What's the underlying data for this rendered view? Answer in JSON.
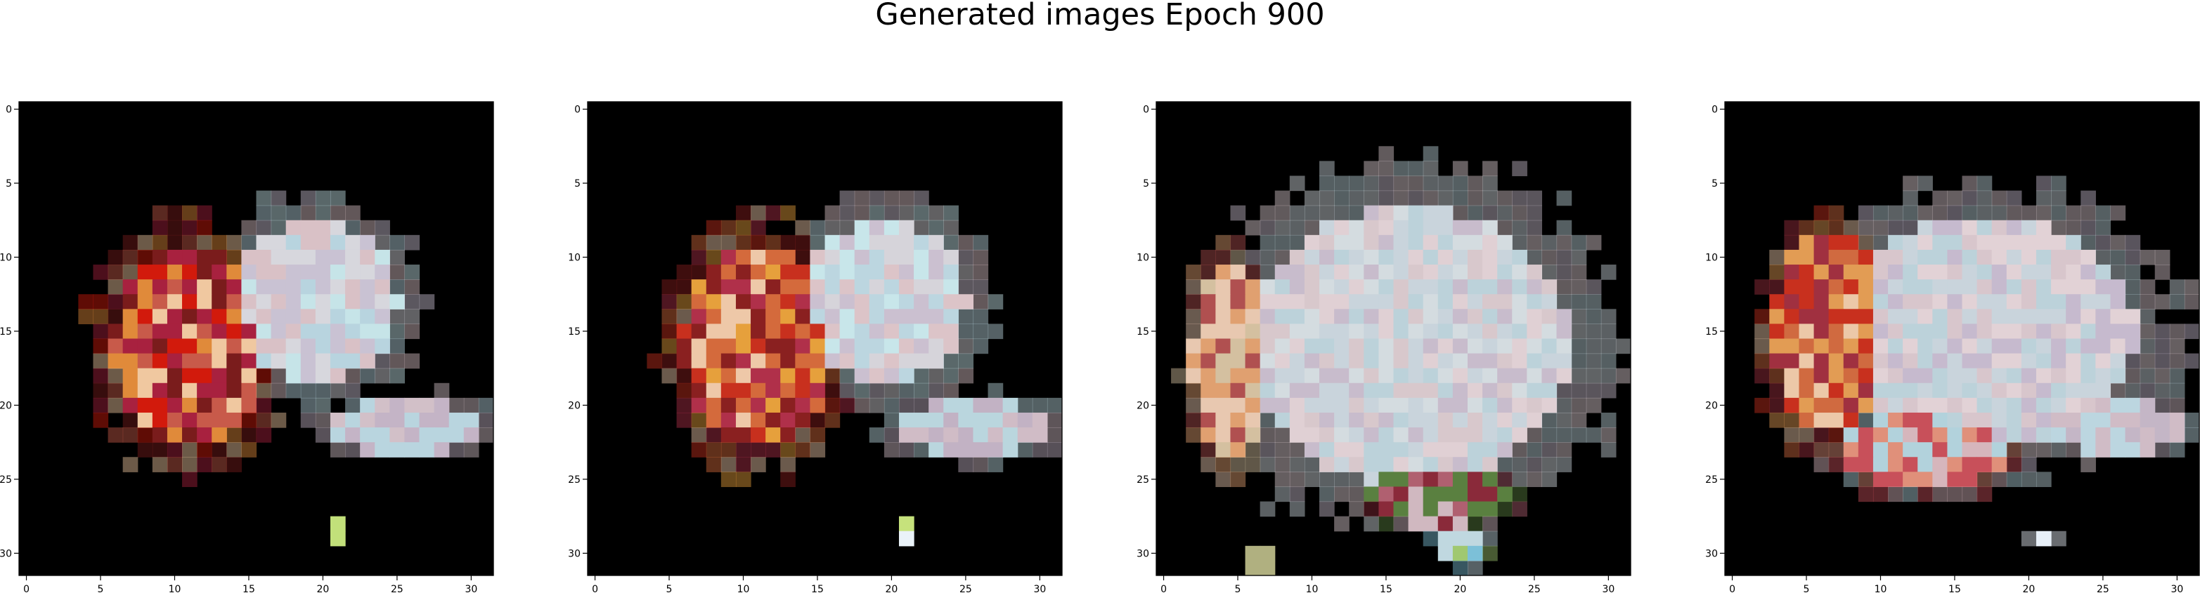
{
  "figure": {
    "title": "Generated images Epoch 900"
  },
  "chart_data": [
    {
      "type": "heatmap",
      "title": "",
      "grid_size": 32,
      "xticks": [
        "0",
        "5",
        "10",
        "15",
        "20",
        "25",
        "30"
      ],
      "yticks": [
        "0",
        "5",
        "10",
        "15",
        "20",
        "25",
        "30"
      ],
      "xlim": [
        -0.5,
        31.5
      ],
      "ylim": [
        31.5,
        -0.5
      ],
      "grid": false,
      "background": "#000000",
      "blobs": [
        {
          "cx": 11,
          "cy": 16,
          "rx": 6,
          "ry": 8,
          "palette": [
            "#d21a0c",
            "#e08a3a",
            "#a8213f",
            "#f0c8a0",
            "#c85a4a",
            "#7a1c1c"
          ]
        },
        {
          "cx": 19.5,
          "cy": 13,
          "rx": 6.5,
          "ry": 6.5,
          "palette": [
            "#d7d7dd",
            "#b8d4df",
            "#c9c2d3",
            "#d9c1c6",
            "#c6e4e8"
          ]
        },
        {
          "cx": 25.5,
          "cy": 21.5,
          "rx": 6,
          "ry": 2.2,
          "palette": [
            "#d2c0c8",
            "#c4b4c6",
            "#b9d5df"
          ]
        },
        {
          "cx": 21,
          "cy": 28.5,
          "rx": 0.8,
          "ry": 0.8,
          "palette": [
            "#9cc2e8",
            "#c2e07a",
            "#e8f0f8"
          ]
        }
      ]
    },
    {
      "type": "heatmap",
      "title": "",
      "grid_size": 32,
      "xticks": [
        "0",
        "5",
        "10",
        "15",
        "20",
        "25",
        "30"
      ],
      "yticks": [
        "0",
        "5",
        "10",
        "15",
        "20",
        "25",
        "30"
      ],
      "xlim": [
        -0.5,
        31.5
      ],
      "ylim": [
        31.5,
        -0.5
      ],
      "grid": false,
      "background": "#000000",
      "blobs": [
        {
          "cx": 11,
          "cy": 16,
          "rx": 6,
          "ry": 8,
          "palette": [
            "#c8301e",
            "#e6a03c",
            "#b0304a",
            "#eec8a8",
            "#d46a3c",
            "#8a2020"
          ]
        },
        {
          "cx": 19.5,
          "cy": 13,
          "rx": 6.5,
          "ry": 6.5,
          "palette": [
            "#d6d4da",
            "#bcd6e0",
            "#cbc0d0",
            "#dcc4c8",
            "#c8e6ea"
          ]
        },
        {
          "cx": 25.5,
          "cy": 21.5,
          "rx": 6,
          "ry": 2.2,
          "palette": [
            "#d0bcc6",
            "#c2b2c4",
            "#bad6de"
          ]
        },
        {
          "cx": 21,
          "cy": 28.5,
          "rx": 0.8,
          "ry": 0.8,
          "palette": [
            "#9ac0e6",
            "#c6e27c",
            "#eaf2f8"
          ]
        }
      ]
    },
    {
      "type": "heatmap",
      "title": "",
      "grid_size": 32,
      "xticks": [
        "0",
        "5",
        "10",
        "15",
        "20",
        "25",
        "30"
      ],
      "yticks": [
        "0",
        "5",
        "10",
        "15",
        "20",
        "25",
        "30"
      ],
      "xlim": [
        -0.5,
        31.5
      ],
      "ylim": [
        31.5,
        -0.5
      ],
      "grid": false,
      "background": "#000000",
      "blobs": [
        {
          "cx": 16.5,
          "cy": 16,
          "rx": 13,
          "ry": 11,
          "palette": [
            "#c9d4dc",
            "#d8c8cc",
            "#bcd2da",
            "#e0d0d4",
            "#c8bccc",
            "#d4dce0"
          ]
        },
        {
          "cx": 4.5,
          "cy": 17,
          "rx": 3,
          "ry": 8,
          "palette": [
            "#e0a070",
            "#d4c0a0",
            "#b05050",
            "#e8c8b0"
          ]
        },
        {
          "cx": 18.5,
          "cy": 26,
          "rx": 5.5,
          "ry": 2.5,
          "palette": [
            "#8a2a3a",
            "#b06070",
            "#d0b8c0",
            "#5a8040"
          ]
        },
        {
          "cx": 20,
          "cy": 29.5,
          "rx": 2,
          "ry": 1.5,
          "palette": [
            "#7cc0d8",
            "#a0c870",
            "#c0d8e0"
          ]
        },
        {
          "cx": 6.5,
          "cy": 30.5,
          "rx": 1,
          "ry": 0.8,
          "palette": [
            "#b0b080",
            "#d8e0a0"
          ]
        }
      ]
    },
    {
      "type": "heatmap",
      "title": "",
      "grid_size": 32,
      "xticks": [
        "0",
        "5",
        "10",
        "15",
        "20",
        "25",
        "30"
      ],
      "yticks": [
        "0",
        "5",
        "10",
        "15",
        "20",
        "25",
        "30"
      ],
      "xlim": [
        -0.5,
        31.5
      ],
      "ylim": [
        31.5,
        -0.5
      ],
      "grid": false,
      "background": "#000000",
      "blobs": [
        {
          "cx": 17,
          "cy": 15,
          "rx": 12,
          "ry": 9,
          "palette": [
            "#c9d4dc",
            "#d8c6cc",
            "#bcd2da",
            "#e2d2d6",
            "#c6bace"
          ]
        },
        {
          "cx": 6.5,
          "cy": 15,
          "rx": 4.5,
          "ry": 8,
          "palette": [
            "#c8301e",
            "#e29c54",
            "#a03040",
            "#ecc8a8",
            "#d06a40"
          ]
        },
        {
          "cx": 13,
          "cy": 23,
          "rx": 7,
          "ry": 3,
          "palette": [
            "#e0907a",
            "#c8505a",
            "#d6b6bc",
            "#b2d2dc"
          ]
        },
        {
          "cx": 26,
          "cy": 21.5,
          "rx": 5.5,
          "ry": 2,
          "palette": [
            "#d0bcc6",
            "#c4b6c6",
            "#bcd6e0"
          ]
        },
        {
          "cx": 21,
          "cy": 29,
          "rx": 1,
          "ry": 0.8,
          "palette": [
            "#9ac4e4",
            "#c6e07a",
            "#e8f0f8"
          ]
        }
      ]
    }
  ]
}
